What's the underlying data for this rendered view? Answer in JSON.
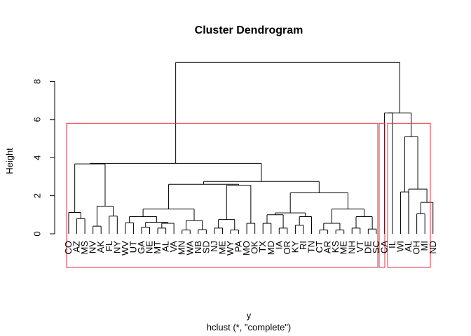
{
  "chart_data": {
    "type": "dendrogram",
    "title": "Cluster Dendrogram",
    "xlabel": "y",
    "sublabel": "hclust (*, \"complete\")",
    "ylabel": "Height",
    "yticks": [
      0,
      2,
      4,
      6,
      8
    ],
    "ylim": [
      0,
      9
    ],
    "leaves": [
      "CO",
      "AZ",
      "MS",
      "NV",
      "AK",
      "FL",
      "NY",
      "WV",
      "UT",
      "GA",
      "NE",
      "MT",
      "AL",
      "VA",
      "MN",
      "WA",
      "NB",
      "SD",
      "NJ",
      "ME",
      "WY",
      "PA",
      "MO",
      "OK",
      "TX",
      "MD",
      "IA",
      "OR",
      "KY",
      "RI",
      "TN",
      "CT",
      "AR",
      "KS",
      "ME",
      "NH",
      "VT",
      "DE",
      "SC",
      "CA",
      "IL",
      "WI",
      "AL",
      "OH",
      "MI",
      "ND"
    ],
    "merges": [
      {
        "left": 0,
        "right": 1,
        "height": 1.12
      },
      {
        "left": 1,
        "right": 2,
        "height": 0.8
      },
      {
        "left": 3,
        "right": 4,
        "height": 0.4
      },
      {
        "left": 5,
        "right": 6,
        "height": 0.93
      },
      {
        "left": 7,
        "right": 8,
        "height": 0.6
      },
      {
        "left": 9,
        "right": 10,
        "height": 0.55
      },
      {
        "left": 11,
        "right": 12,
        "height": 0.55
      },
      {
        "left": 14,
        "right": 15,
        "height": 0.93
      },
      {
        "left": 18,
        "right": 19,
        "height": 1.07
      },
      {
        "left": 20,
        "right": 21,
        "height": 1.02
      },
      {
        "left": 24,
        "right": 25,
        "height": 0.95
      },
      {
        "left": 28,
        "right": 29,
        "height": 1.3
      },
      {
        "left": 33,
        "right": 34,
        "height": 1.0
      },
      {
        "left": 36,
        "right": 37,
        "height": 0.9
      }
    ],
    "cut_height": 5.8,
    "clusters": [
      {
        "from_leaf": "CO",
        "to_leaf": "SC"
      },
      {
        "from_leaf": "CA",
        "to_leaf": "CA"
      },
      {
        "from_leaf": "IL",
        "to_leaf": "ND"
      }
    ]
  }
}
